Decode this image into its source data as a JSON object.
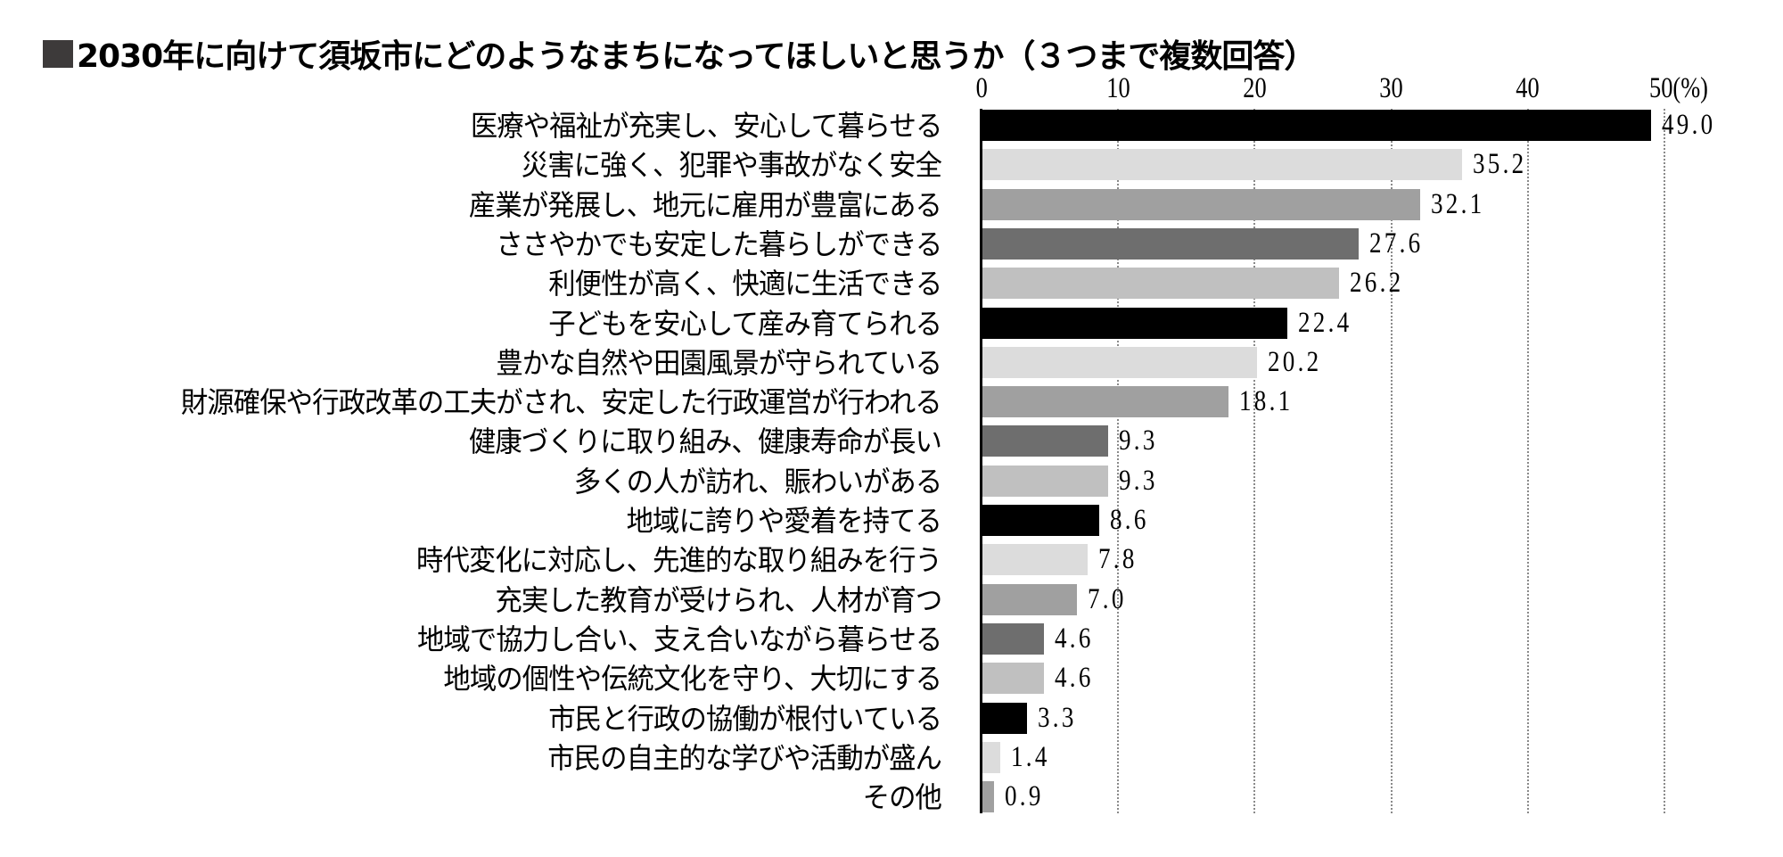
{
  "title": {
    "marker": "■",
    "text": "2030年に向けて須坂市にどのようなまちになってほしいと思うか（３つまで複数回答）"
  },
  "axis": {
    "ticks": [
      "0",
      "10",
      "20",
      "30",
      "40",
      "50(%)"
    ],
    "tick_values": [
      0,
      10,
      20,
      30,
      40,
      50
    ]
  },
  "palette": [
    "#000000",
    "#dcdcdc",
    "#a0a0a0",
    "#6e6e6e",
    "#c0c0c0"
  ],
  "chart_data": {
    "type": "bar",
    "orientation": "horizontal",
    "title": "2030年に向けて須坂市にどのようなまちになってほしいと思うか（３つまで複数回答）",
    "xlabel": "(%)",
    "ylabel": "",
    "xlim": [
      0,
      50
    ],
    "x_ticks": [
      0,
      10,
      20,
      30,
      40,
      50
    ],
    "grid": "vertical dotted",
    "legend": "none",
    "categories": [
      "医療や福祉が充実し、安心して暮らせる",
      "災害に強く、犯罪や事故がなく安全",
      "産業が発展し、地元に雇用が豊富にある",
      "ささやかでも安定した暮らしができる",
      "利便性が高く、快適に生活できる",
      "子どもを安心して産み育てられる",
      "豊かな自然や田園風景が守られている",
      "財源確保や行政改革の工夫がされ、安定した行政運営が行われる",
      "健康づくりに取り組み、健康寿命が長い",
      "多くの人が訪れ、賑わいがある",
      "地域に誇りや愛着を持てる",
      "時代変化に対応し、先進的な取り組みを行う",
      "充実した教育が受けられ、人材が育つ",
      "地域で協力し合い、支え合いながら暮らせる",
      "地域の個性や伝統文化を守り、大切にする",
      "市民と行政の協働が根付いている",
      "市民の自主的な学びや活動が盛ん",
      "その他"
    ],
    "values": [
      49.0,
      35.2,
      32.1,
      27.6,
      26.2,
      22.4,
      20.2,
      18.1,
      9.3,
      9.3,
      8.6,
      7.8,
      7.0,
      4.6,
      4.6,
      3.3,
      1.4,
      0.9
    ],
    "value_labels": [
      "49.0",
      "35.2",
      "32.1",
      "27.6",
      "26.2",
      "22.4",
      "20.2",
      "18.1",
      "9.3",
      "9.3",
      "8.6",
      "7.8",
      "7.0",
      "4.6",
      "4.6",
      "3.3",
      "1.4",
      "0.9"
    ],
    "bar_colors": [
      "#000000",
      "#dcdcdc",
      "#a0a0a0",
      "#6e6e6e",
      "#c0c0c0",
      "#000000",
      "#dcdcdc",
      "#a0a0a0",
      "#6e6e6e",
      "#c0c0c0",
      "#000000",
      "#dcdcdc",
      "#a0a0a0",
      "#6e6e6e",
      "#c0c0c0",
      "#000000",
      "#dcdcdc",
      "#a0a0a0"
    ]
  }
}
